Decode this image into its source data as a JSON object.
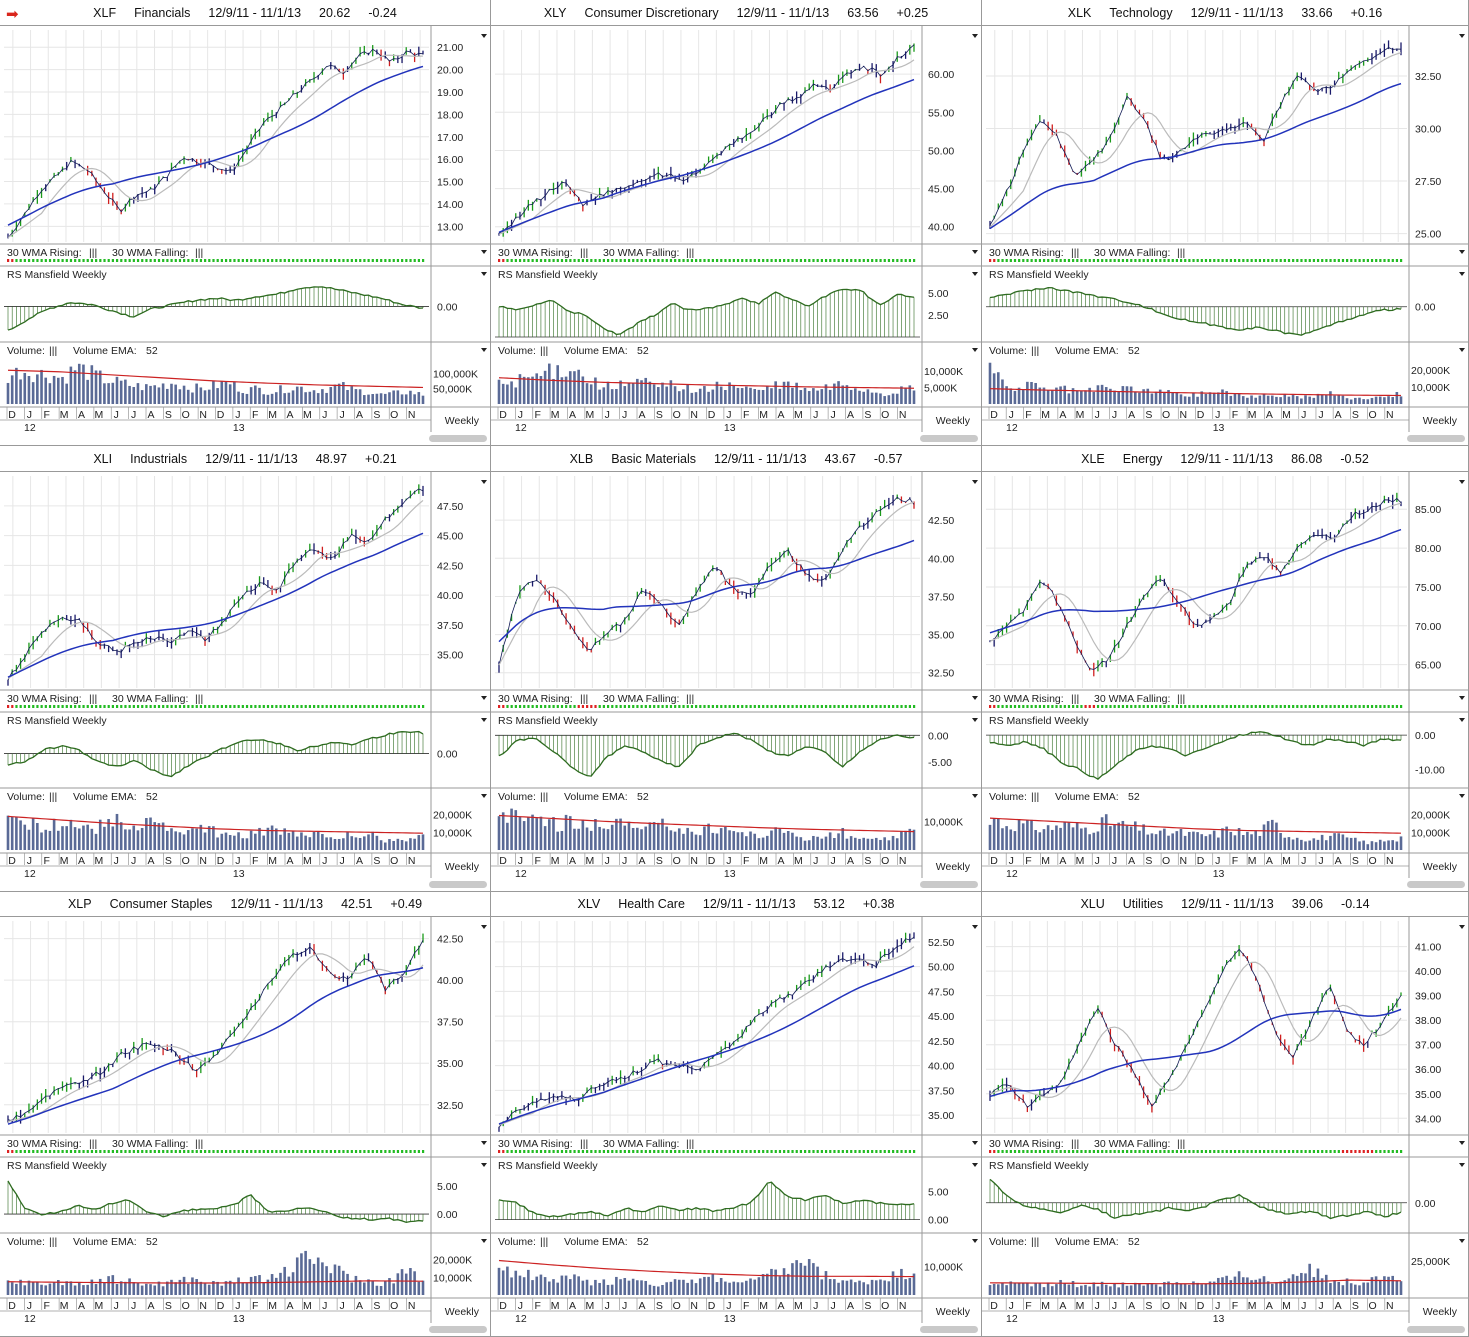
{
  "labels": {
    "wma_rising": "30 WMA Rising:",
    "wma_falling": "30 WMA Falling:",
    "wma_glyph": "|||",
    "rs_title": "RS Mansfield Weekly",
    "volume": "Volume:",
    "vol_glyph": "|||",
    "vol_ema": "Volume EMA:",
    "vol_ema_period": "52",
    "weekly": "Weekly",
    "months": [
      "D",
      "J",
      "F",
      "M",
      "A",
      "M",
      "J",
      "J",
      "A",
      "S",
      "O",
      "N",
      "D",
      "J",
      "F",
      "M",
      "A",
      "M",
      "J",
      "J",
      "A",
      "S",
      "O",
      "N"
    ],
    "years": [
      "12",
      "13"
    ]
  },
  "colors": {
    "up_bar": "#1a9a1a",
    "down_bar": "#d01f1f",
    "neutral_bar": "#1a1a6a",
    "wma30": "#2233bb",
    "wma10": "#bbbbbb",
    "rs_line": "#2d6b1f",
    "rs_fill": "#2d6b1f",
    "vol_bar": "#5a6a96",
    "vol_ema": "#cc2222",
    "rising_dot": "#22bb22",
    "falling_dot": "#dd2222",
    "grid": "#e6e6e6",
    "arrow": "#d9261c"
  },
  "icons": {
    "alert": "red-arrow-icon",
    "menu": "dropdown-triangle-icon"
  },
  "chart_data": [
    {
      "type": "line",
      "symbol": "XLF",
      "name": "Financials",
      "range": "12/9/11 - 11/1/13",
      "last": "20.62",
      "change": "-0.24",
      "price_ticks": [
        "21.00",
        "20.00",
        "19.00",
        "18.00",
        "17.00",
        "16.00",
        "15.00",
        "14.00",
        "13.00"
      ],
      "ylim": [
        12.3,
        21.5
      ],
      "path": [
        12.5,
        13.5,
        14.6,
        15.2,
        15.9,
        15.5,
        14.6,
        13.7,
        14.4,
        14.6,
        15.3,
        16.1,
        15.9,
        15.7,
        15.4,
        16.5,
        17.6,
        18.2,
        18.9,
        19.5,
        20.2,
        19.9,
        20.6,
        20.9,
        20.3,
        20.8,
        20.62
      ],
      "wma_start": 13.5,
      "wma_end": 19.9,
      "rs_ticks": [
        "0.00"
      ],
      "rs_range": [
        -1.5,
        1.1
      ],
      "rs_zero": 0,
      "rs": [
        -1.2,
        -0.6,
        -0.1,
        0.2,
        0.1,
        -0.2,
        -0.5,
        -0.1,
        0.1,
        0.3,
        0.4,
        0.3,
        0.5,
        0.6,
        0.9,
        1.0,
        0.8,
        0.6,
        0.4,
        0.1,
        -0.1
      ],
      "vol_ticks": [
        "100,000K",
        "50,000K"
      ],
      "vol_max": 150000,
      "vol_ema": [
        110000,
        105000,
        95000,
        85000,
        75000,
        68000,
        62000,
        58000,
        54000
      ],
      "vol": [
        90000,
        110000,
        100000,
        95000,
        85000,
        120000,
        100000,
        80000,
        70000,
        60000,
        55000,
        60000,
        70000,
        55000,
        50000,
        60000,
        70000,
        45000,
        50000,
        40000,
        50000,
        55000,
        45000,
        50000,
        60000,
        45000,
        40000,
        30000,
        35000,
        40000,
        30000
      ]
    },
    {
      "type": "line",
      "symbol": "XLY",
      "name": "Consumer Discretionary",
      "range": "12/9/11 - 11/1/13",
      "last": "63.56",
      "change": "+0.25",
      "price_ticks": [
        "60.00",
        "55.00",
        "50.00",
        "45.00",
        "40.00"
      ],
      "ylim": [
        38,
        65
      ],
      "path": [
        39,
        41,
        43,
        44.5,
        46,
        43,
        44,
        45,
        45.5,
        46.5,
        47,
        46,
        47,
        49,
        51,
        52,
        54,
        56,
        57,
        58.5,
        58,
        60,
        61,
        60,
        62,
        63.56
      ],
      "wma_start": 39.5,
      "wma_end": 58.5,
      "rs_ticks": [
        "5.00",
        "2.50"
      ],
      "rs_range": [
        0,
        6
      ],
      "rs_zero": 0,
      "rs": [
        3.5,
        3.0,
        3.6,
        4.2,
        3.0,
        2.4,
        1.0,
        0.2,
        1.5,
        2.5,
        3.8,
        3.0,
        3.2,
        3.6,
        4.5,
        3.8,
        5.0,
        4.2,
        3.5,
        4.8,
        5.5,
        5.2,
        3.5,
        4.8,
        4.5
      ],
      "vol_ticks": [
        "10,000K",
        "5,000K"
      ],
      "vol_max": 14000,
      "vol_ema": [
        8000,
        7200,
        6600,
        6200,
        5800,
        5500,
        5200,
        5000,
        4800
      ],
      "vol": [
        6000,
        7000,
        8000,
        9000,
        10000,
        12000,
        8000,
        6000,
        5000,
        6000,
        7000,
        5000,
        6000,
        5000,
        4000,
        5000,
        6000,
        5000,
        4000,
        5000,
        6000,
        5000,
        4000,
        5000,
        6000,
        5000,
        4000,
        3000,
        4000,
        5000
      ]
    },
    {
      "type": "line",
      "symbol": "XLK",
      "name": "Technology",
      "range": "12/9/11 - 11/1/13",
      "last": "33.66",
      "change": "+0.16",
      "price_ticks": [
        "32.50",
        "30.00",
        "27.50",
        "25.00"
      ],
      "ylim": [
        24.6,
        34.4
      ],
      "path": [
        25.3,
        27,
        29,
        30.5,
        29.5,
        27.8,
        28.5,
        29.5,
        31.5,
        30.5,
        28.5,
        28.8,
        29.5,
        29.8,
        30,
        30.2,
        29.5,
        31.2,
        32.5,
        31.8,
        32,
        32.8,
        33.2,
        33.8,
        33.66
      ],
      "wma_start": 25.2,
      "wma_end": 31.6,
      "rs_ticks": [
        "0.00"
      ],
      "rs_range": [
        -1.6,
        1.2
      ],
      "rs_zero": 0,
      "rs": [
        0.5,
        0.7,
        0.9,
        1.0,
        0.8,
        0.6,
        0.4,
        0.2,
        -0.2,
        -0.6,
        -0.8,
        -1.0,
        -1.2,
        -1.1,
        -1.3,
        -1.5,
        -1.2,
        -0.8,
        -0.5,
        -0.2,
        -0.1
      ],
      "vol_ticks": [
        "20,000K",
        "10,000K"
      ],
      "vol_max": 27000,
      "vol_ema": [
        9000,
        8200,
        7600,
        7000,
        6500,
        6000,
        5600,
        5200,
        5000
      ],
      "vol": [
        22000,
        10000,
        9000,
        11000,
        8000,
        9000,
        7000,
        8000,
        9000,
        8000,
        10000,
        7000,
        8000,
        6000,
        5000,
        6000,
        8000,
        6000,
        5000,
        4000,
        6000,
        5000,
        4000,
        5000,
        6000,
        4000,
        3000,
        4000,
        5000,
        6000
      ]
    },
    {
      "type": "line",
      "symbol": "XLI",
      "name": "Industrials",
      "range": "12/9/11 - 11/1/13",
      "last": "48.97",
      "change": "+0.21",
      "price_ticks": [
        "47.50",
        "45.00",
        "42.50",
        "40.00",
        "37.50",
        "35.00"
      ],
      "ylim": [
        32.2,
        49.5
      ],
      "path": [
        33,
        35,
        37,
        38,
        37.8,
        36,
        35.2,
        36,
        36.5,
        36,
        37,
        36.2,
        38,
        40,
        41,
        40.5,
        43,
        44,
        43,
        45,
        44.5,
        46.5,
        48,
        48.97
      ],
      "wma_start": 33.2,
      "wma_end": 44.8,
      "rs_ticks": [
        "0.00"
      ],
      "rs_range": [
        -2,
        1.6
      ],
      "rs_zero": 0,
      "rs": [
        -0.8,
        -0.5,
        0.3,
        0.5,
        0.2,
        -0.6,
        -0.9,
        -0.5,
        -1.1,
        -1.6,
        -0.8,
        -0.2,
        0.4,
        0.8,
        1.0,
        0.7,
        0.2,
        0.5,
        0.8,
        0.6,
        1.0,
        1.3,
        1.5,
        1.4
      ],
      "vol_ticks": [
        "20,000K",
        "10,000K"
      ],
      "vol_max": 26000,
      "vol_ema": [
        19000,
        17000,
        15000,
        13500,
        12000,
        11000,
        10500,
        10000,
        9500
      ],
      "vol": [
        20000,
        18000,
        14000,
        13000,
        16000,
        14000,
        12000,
        17000,
        15000,
        14000,
        18000,
        12000,
        11000,
        10000,
        12000,
        9000,
        8000,
        9000,
        12000,
        10000,
        9000,
        8000,
        9000,
        7000,
        8000,
        10000,
        6000,
        5000,
        6000,
        7000
      ]
    },
    {
      "type": "line",
      "symbol": "XLB",
      "name": "Basic Materials",
      "range": "12/9/11 - 11/1/13",
      "last": "43.67",
      "change": "-0.57",
      "price_ticks": [
        "42.50",
        "40.00",
        "37.50",
        "35.00",
        "32.50"
      ],
      "ylim": [
        31.5,
        45
      ],
      "path": [
        33,
        37.5,
        38.8,
        37.5,
        35.5,
        34,
        35,
        36,
        38,
        37,
        35.5,
        38,
        39.5,
        38,
        37.5,
        39.5,
        40.5,
        39,
        38.5,
        40.5,
        42,
        43,
        44,
        43.67
      ],
      "wma_start": 35.8,
      "wma_end": 40.8,
      "rs_ticks": [
        "0.00",
        "-5.00"
      ],
      "rs_range": [
        -9,
        1
      ],
      "rs_zero": 0,
      "rs": [
        -4,
        -1,
        -0.5,
        -3,
        -6,
        -8,
        -4,
        -2,
        -3,
        -5,
        -6,
        -2,
        -0.5,
        0.5,
        -1,
        -3,
        -4,
        -2,
        -3,
        -6,
        -3,
        -1,
        0,
        -0.5
      ],
      "vol_ticks": [
        "10,000K"
      ],
      "vol_max": 16000,
      "vol_ema": [
        12000,
        11000,
        10000,
        9200,
        8500,
        7800,
        7200,
        6800,
        6400
      ],
      "vol": [
        14000,
        12000,
        10000,
        11000,
        9000,
        10000,
        8000,
        9000,
        11000,
        8000,
        7000,
        8000,
        9000,
        7000,
        6000,
        8000,
        7000,
        6000,
        5000,
        6000,
        7000,
        5000,
        4000,
        5000,
        6000,
        4000,
        3000,
        4000,
        5000,
        6000
      ]
    },
    {
      "type": "line",
      "symbol": "XLE",
      "name": "Energy",
      "range": "12/9/11 - 11/1/13",
      "last": "86.08",
      "change": "-0.52",
      "price_ticks": [
        "85.00",
        "80.00",
        "75.00",
        "70.00",
        "65.00"
      ],
      "ylim": [
        62,
        88.5
      ],
      "path": [
        68,
        70,
        72,
        76,
        73,
        68,
        64,
        66,
        70,
        74,
        76,
        73,
        70,
        71,
        73,
        78,
        79,
        77,
        80,
        82,
        81,
        84,
        85,
        86,
        86.08
      ],
      "wma_start": 70,
      "wma_end": 81.5,
      "rs_ticks": [
        "0.00",
        "-10.00"
      ],
      "rs_range": [
        -14,
        1.5
      ],
      "rs_zero": 0,
      "rs": [
        -2,
        -3,
        -2,
        -4,
        -8,
        -10,
        -13,
        -9,
        -5,
        -3,
        -4,
        -6,
        -4,
        -2,
        0,
        1,
        0,
        -2,
        -3,
        -1,
        -2,
        -3,
        -1,
        -1.5
      ],
      "vol_ticks": [
        "20,000K",
        "10,000K"
      ],
      "vol_max": 26000,
      "vol_ema": [
        18000,
        16500,
        15000,
        13500,
        12000,
        11000,
        10500,
        10000,
        9500
      ],
      "vol": [
        20000,
        14000,
        15000,
        13000,
        12000,
        14000,
        13000,
        12000,
        16000,
        14000,
        13000,
        11000,
        9000,
        10000,
        9000,
        8000,
        9000,
        12000,
        9000,
        10000,
        15000,
        8000,
        7000,
        6000,
        8000,
        7000,
        5000,
        4000,
        6000,
        7000
      ]
    },
    {
      "type": "line",
      "symbol": "XLP",
      "name": "Consumer Staples",
      "range": "12/9/11 - 11/1/13",
      "last": "42.51",
      "change": "+0.49",
      "price_ticks": [
        "42.50",
        "40.00",
        "37.50",
        "35.00",
        "32.50"
      ],
      "ylim": [
        30.8,
        43.2
      ],
      "path": [
        31.5,
        32,
        33,
        33.5,
        34,
        34.5,
        35.5,
        36,
        36.2,
        35.5,
        34.5,
        35.5,
        37,
        38.5,
        40,
        41.5,
        42,
        40.5,
        40,
        41.5,
        39.5,
        40.5,
        42.51
      ],
      "wma_start": 31.2,
      "wma_end": 40.8,
      "rs_ticks": [
        "5.00",
        "0.00"
      ],
      "rs_range": [
        -2.5,
        7
      ],
      "rs_zero": 0,
      "rs": [
        6,
        1,
        -0.2,
        0.5,
        1.5,
        0.6,
        2,
        2.5,
        0.6,
        -0.5,
        0.5,
        0.8,
        1,
        1.5,
        3.5,
        0.5,
        0.5,
        1.2,
        0.8,
        -0.5,
        -0.8,
        -1,
        -0.8,
        -1.5,
        -1.2
      ],
      "vol_ticks": [
        "20,000K",
        "10,000K"
      ],
      "vol_max": 26000,
      "vol_ema": [
        7500,
        7200,
        7000,
        6800,
        6800,
        7000,
        7500,
        8000,
        7800
      ],
      "vol": [
        7000,
        8000,
        6000,
        7000,
        8000,
        6000,
        7000,
        9000,
        8000,
        7000,
        6000,
        7000,
        8000,
        9000,
        7000,
        6000,
        9000,
        8000,
        10000,
        12000,
        15000,
        22000,
        18000,
        14000,
        10000,
        8000,
        7000,
        9000,
        15000,
        8000
      ]
    },
    {
      "type": "line",
      "symbol": "XLV",
      "name": "Health Care",
      "range": "12/9/11 - 11/1/13",
      "last": "53.12",
      "change": "+0.38",
      "price_ticks": [
        "52.50",
        "50.00",
        "47.50",
        "45.00",
        "42.50",
        "40.00",
        "37.50",
        "35.00"
      ],
      "ylim": [
        33.2,
        54
      ],
      "path": [
        34,
        35.5,
        36.5,
        37,
        36.5,
        38,
        38.5,
        39.5,
        40.5,
        40,
        39.5,
        41,
        42.5,
        45,
        46.5,
        47.5,
        49,
        50.5,
        51,
        50,
        52,
        53.12
      ],
      "wma_start": 34.2,
      "wma_end": 49.5,
      "rs_ticks": [
        "5.00",
        "0.00"
      ],
      "rs_range": [
        -1.5,
        8
      ],
      "rs_zero": 0,
      "rs": [
        3.5,
        3.0,
        1.0,
        0.5,
        1.0,
        1.5,
        0.8,
        2.0,
        1.5,
        2.5,
        1.8,
        2.0,
        1.5,
        2.2,
        3.0,
        7.0,
        4.0,
        3.5,
        4.5,
        3.0,
        3.5,
        3.0,
        2.5,
        3.0
      ],
      "vol_ticks": [
        "10,000K"
      ],
      "vol_max": 16000,
      "vol_ema": [
        12000,
        10500,
        9200,
        8200,
        7400,
        6800,
        6500,
        6500,
        6400
      ],
      "vol": [
        9000,
        8000,
        7000,
        6000,
        5000,
        6000,
        5000,
        4000,
        5000,
        6000,
        5000,
        4000,
        5000,
        4000,
        5000,
        6000,
        5000,
        4000,
        5000,
        7000,
        8000,
        12000,
        9000,
        6000,
        5000,
        4000,
        5000,
        6000,
        7000,
        8000
      ]
    },
    {
      "type": "line",
      "symbol": "XLU",
      "name": "Utilities",
      "range": "12/9/11 - 11/1/13",
      "last": "39.06",
      "change": "-0.14",
      "price_ticks": [
        "41.00",
        "40.00",
        "39.00",
        "38.00",
        "37.00",
        "36.00",
        "35.00",
        "34.00"
      ],
      "ylim": [
        33.4,
        41.8
      ],
      "path": [
        35,
        35.5,
        34.5,
        35,
        35.5,
        37,
        38.5,
        37,
        36,
        34.5,
        35.5,
        37,
        38.5,
        40,
        41,
        39.5,
        37.5,
        36.5,
        38,
        39.5,
        37.5,
        37,
        38,
        39.06
      ],
      "wma_start": 34.8,
      "wma_end": 38.8,
      "rs_ticks": [
        "0.00"
      ],
      "rs_range": [
        -2,
        2.2
      ],
      "rs_zero": 0,
      "rs": [
        1.8,
        0.5,
        -0.3,
        -0.5,
        -0.8,
        -0.2,
        -0.5,
        -1.2,
        -0.9,
        -0.8,
        -0.4,
        -0.6,
        -0.3,
        0.3,
        0.6,
        -0.3,
        -0.7,
        -0.9,
        -0.6,
        -1.2,
        -1.0,
        -0.7,
        -1.1,
        -0.8
      ],
      "vol_ticks": [
        "25,000K"
      ],
      "vol_max": 34000,
      "vol_ema": [
        9000,
        8800,
        8600,
        8400,
        8300,
        8500,
        9500,
        11000,
        10500
      ],
      "vol": [
        8000,
        9000,
        7000,
        8000,
        7000,
        9000,
        8000,
        7000,
        9000,
        8000,
        7000,
        9000,
        8000,
        10000,
        9000,
        8000,
        10000,
        12000,
        15000,
        13000,
        9000,
        12000,
        20000,
        16000,
        12000,
        10000,
        9000,
        14000,
        16000,
        12000
      ]
    }
  ]
}
